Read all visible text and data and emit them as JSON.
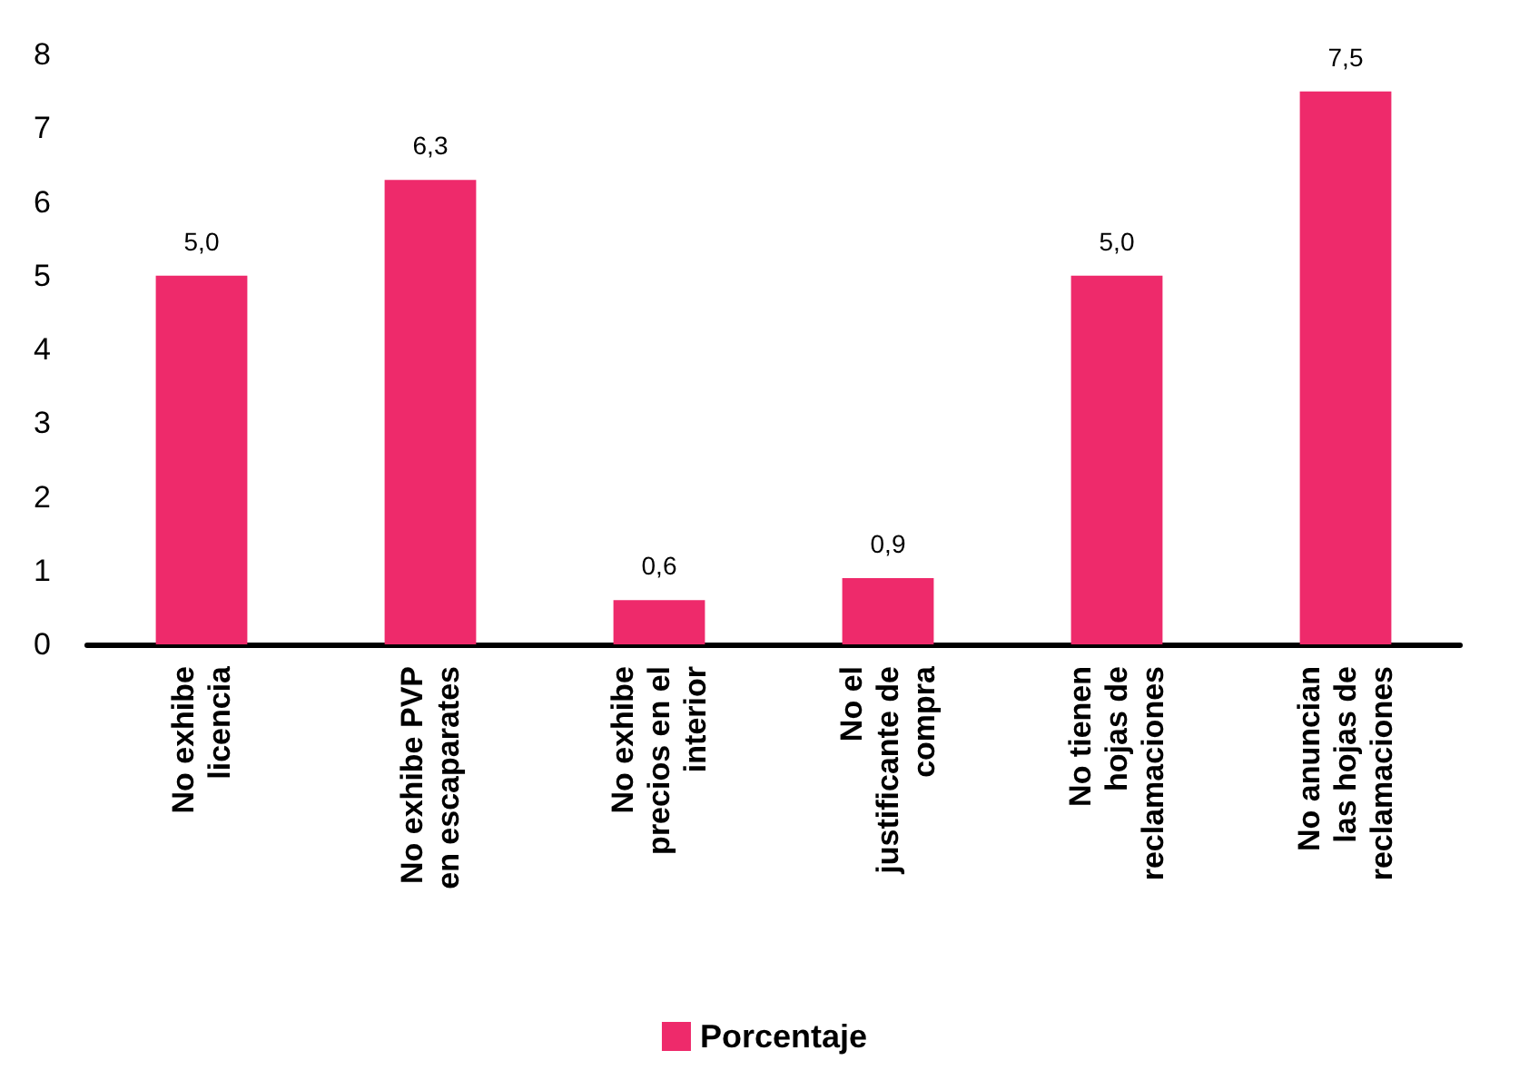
{
  "chart_data": {
    "type": "bar",
    "categories": [
      "No exhibe\nlicencia",
      "No exhibe PVP\nen escaparates",
      "No exhibe\nprecios en el\ninterior",
      "No el\njustificante de\ncompra",
      "No tienen\nhojas de\nreclamaciones",
      "No anuncian\nlas hojas de\nreclamaciones"
    ],
    "series": [
      {
        "name": "Porcentaje",
        "color": "#ee2a6b",
        "values": [
          5.0,
          6.3,
          0.6,
          0.9,
          5.0,
          7.5
        ],
        "value_labels": [
          "5,0",
          "6,3",
          "0,6",
          "0,9",
          "5,0",
          "7,5"
        ]
      }
    ],
    "ylim": [
      0,
      8
    ],
    "yticks": [
      0,
      1,
      2,
      3,
      4,
      5,
      6,
      7,
      8
    ],
    "grid": false,
    "legend": "bottom"
  }
}
